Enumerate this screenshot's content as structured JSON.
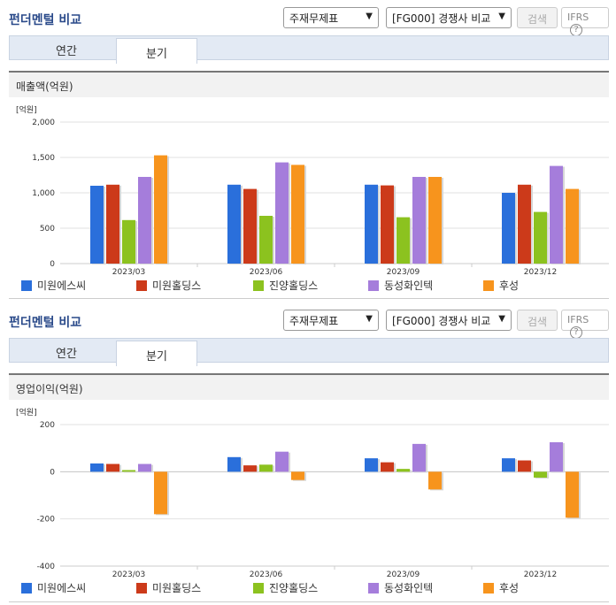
{
  "panels": [
    {
      "title": "펀더멘털 비교",
      "select1": "주재무제표",
      "select2": "[FG000] 경쟁사 비교",
      "search_label": "검색",
      "ifrs_label": "IFRS",
      "ifrs_help": "?",
      "tabs": [
        "연간",
        "분기"
      ],
      "section_label": "매출액(억원)"
    },
    {
      "title": "펀더멘털 비교",
      "select1": "주재무제표",
      "select2": "[FG000] 경쟁사 비교",
      "search_label": "검색",
      "ifrs_label": "IFRS",
      "ifrs_help": "?",
      "tabs": [
        "연간",
        "분기"
      ],
      "section_label": "영업이익(억원)"
    }
  ],
  "colors": {
    "미원에스씨": "#2a6fdb",
    "미원홀딩스": "#cc3a1a",
    "진양홀딩스": "#8cc21f",
    "동성화인텍": "#a57ddb",
    "후성": "#f7941d"
  },
  "chart_data": [
    {
      "type": "bar",
      "unit_label": "[억원]",
      "categories": [
        "2023/03",
        "2023/06",
        "2023/09",
        "2023/12"
      ],
      "ylim": [
        0,
        2000
      ],
      "yticks": [
        0,
        500,
        1000,
        1500,
        2000
      ],
      "ytick_labels": [
        "0",
        "500",
        "1,000",
        "1,500",
        "2,000"
      ],
      "series": [
        {
          "name": "미원에스씨",
          "values": [
            1100,
            1115,
            1115,
            1000
          ]
        },
        {
          "name": "미원홀딩스",
          "values": [
            1115,
            1055,
            1105,
            1115
          ]
        },
        {
          "name": "진양홀딩스",
          "values": [
            615,
            675,
            655,
            730
          ]
        },
        {
          "name": "동성화인텍",
          "values": [
            1225,
            1430,
            1225,
            1380
          ]
        },
        {
          "name": "후성",
          "values": [
            1530,
            1395,
            1225,
            1055
          ]
        }
      ]
    },
    {
      "type": "bar",
      "unit_label": "[억원]",
      "categories": [
        "2023/03",
        "2023/06",
        "2023/09",
        "2023/12"
      ],
      "ylim": [
        -400,
        200
      ],
      "yticks": [
        -400,
        -200,
        0,
        200
      ],
      "ytick_labels": [
        "-400",
        "-200",
        "0",
        "200"
      ],
      "series": [
        {
          "name": "미원에스씨",
          "values": [
            35,
            62,
            57,
            57
          ]
        },
        {
          "name": "미원홀딩스",
          "values": [
            33,
            27,
            40,
            48
          ]
        },
        {
          "name": "진양홀딩스",
          "values": [
            7,
            30,
            12,
            -25
          ]
        },
        {
          "name": "동성화인텍",
          "values": [
            33,
            85,
            118,
            125
          ]
        },
        {
          "name": "후성",
          "values": [
            -180,
            -35,
            -75,
            -195
          ]
        }
      ]
    }
  ]
}
